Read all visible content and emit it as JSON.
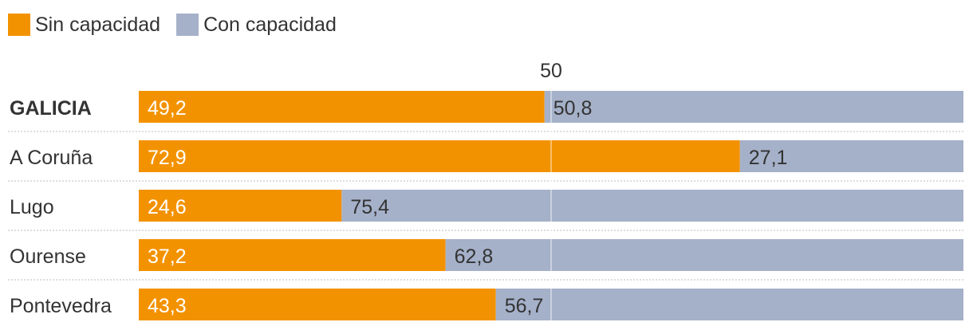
{
  "chart_data": {
    "type": "bar",
    "orientation": "horizontal",
    "stacked": true,
    "categories": [
      "GALICIA",
      "A Coruña",
      "Lugo",
      "Ourense",
      "Pontevedra"
    ],
    "series": [
      {
        "name": "Sin capacidad",
        "color": "#f39200",
        "values": [
          49.2,
          72.9,
          24.6,
          37.2,
          43.3
        ]
      },
      {
        "name": "Con capacidad",
        "color": "#a5b1c9",
        "values": [
          50.8,
          27.1,
          75.4,
          62.8,
          56.7
        ]
      }
    ],
    "value_labels": [
      [
        "49,2",
        "72,9",
        "24,6",
        "37,2",
        "43,3"
      ],
      [
        "50,8",
        "27,1",
        "75,4",
        "62,8",
        "56,7"
      ]
    ],
    "reference_line": {
      "value": 50,
      "label": "50"
    },
    "xlim": [
      0,
      100
    ],
    "legend_position": "top-left",
    "grid": false,
    "emphasized_category": "GALICIA"
  }
}
